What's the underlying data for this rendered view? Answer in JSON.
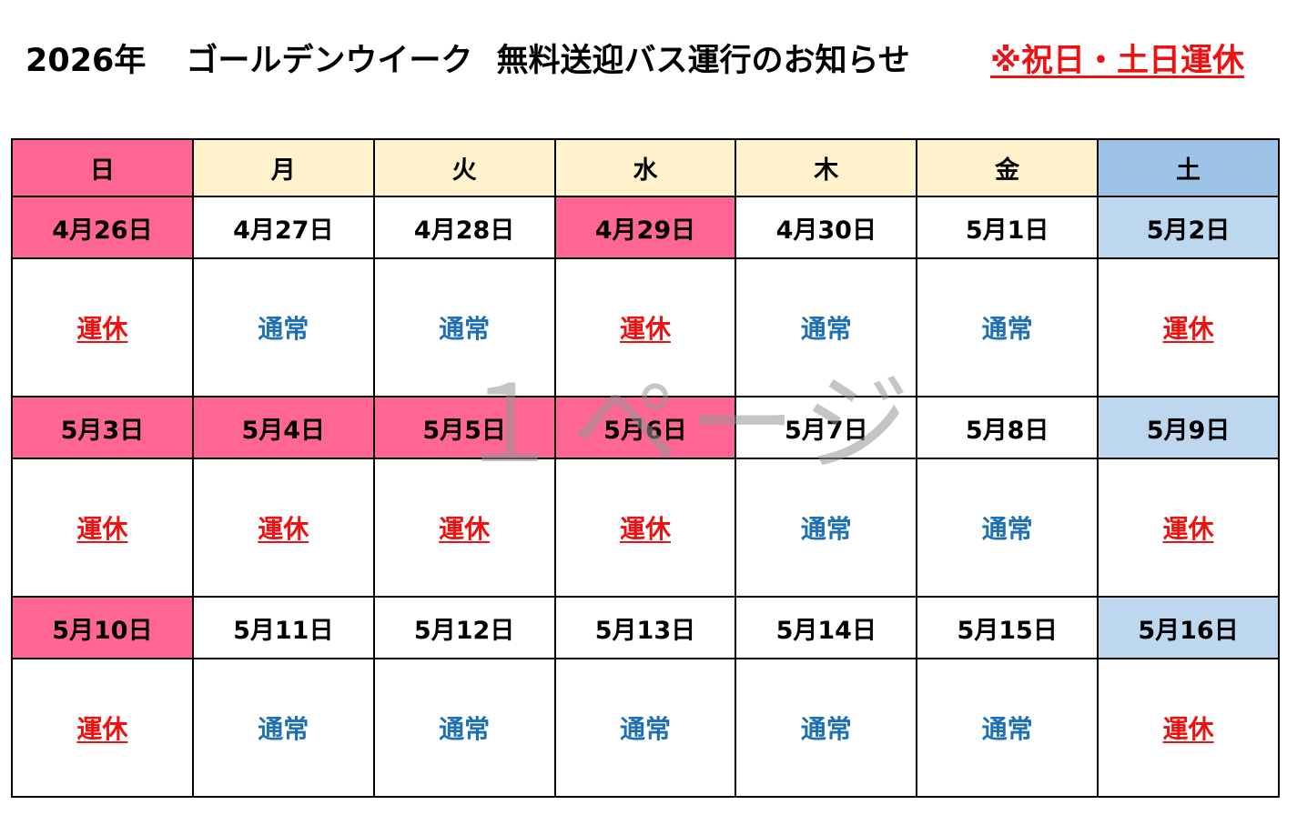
{
  "title": {
    "year": "2026年",
    "event": "ゴールデンウイーク",
    "subject": "無料送迎バス運行のお知らせ",
    "notice": "※祝日・土日運休"
  },
  "watermark": "１ページ",
  "colors": {
    "holiday_pink": "#ff6694",
    "weekday_header": "#fff2cd",
    "saturday_header": "#9dc3e6",
    "saturday_date": "#bdd7ee",
    "closed_text": "#ee1111",
    "normal_text": "#1f6fb4"
  },
  "weekdays": [
    "日",
    "月",
    "火",
    "水",
    "木",
    "金",
    "土"
  ],
  "weeks": [
    {
      "dates": [
        "4月26日",
        "4月27日",
        "4月28日",
        "4月29日",
        "4月30日",
        "5月1日",
        "5月2日"
      ],
      "date_style": [
        "pink",
        "white",
        "white",
        "pink",
        "white",
        "white",
        "lightblue"
      ],
      "status": [
        "運休",
        "通常",
        "通常",
        "運休",
        "通常",
        "通常",
        "運休"
      ]
    },
    {
      "dates": [
        "5月3日",
        "5月4日",
        "5月5日",
        "5月6日",
        "5月7日",
        "5月8日",
        "5月9日"
      ],
      "date_style": [
        "pink",
        "pink",
        "pink",
        "pink",
        "white",
        "white",
        "lightblue"
      ],
      "status": [
        "運休",
        "運休",
        "運休",
        "運休",
        "通常",
        "通常",
        "運休"
      ]
    },
    {
      "dates": [
        "5月10日",
        "5月11日",
        "5月12日",
        "5月13日",
        "5月14日",
        "5月15日",
        "5月16日"
      ],
      "date_style": [
        "pink",
        "white",
        "white",
        "white",
        "white",
        "white",
        "lightblue"
      ],
      "status": [
        "運休",
        "通常",
        "通常",
        "通常",
        "通常",
        "通常",
        "運休"
      ]
    }
  ]
}
